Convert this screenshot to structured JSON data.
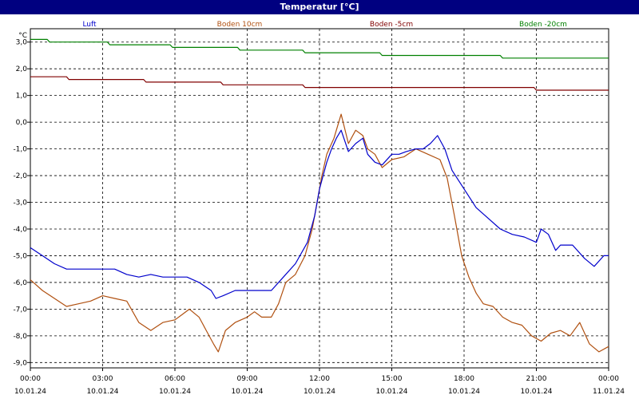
{
  "window": {
    "title": "Temperatur [°C]"
  },
  "chart_data": {
    "type": "line",
    "title": "Temperatur [°C]",
    "ylabel": "°C",
    "xlabel": "",
    "ylim": [
      -9.2,
      3.5
    ],
    "xlim": [
      0,
      24
    ],
    "grid": true,
    "legend_position": "top",
    "y_ticks": [
      "3,0",
      "2,0",
      "1,0",
      "0,0",
      "-1,0",
      "-2,0",
      "-3,0",
      "-4,0",
      "-5,0",
      "-6,0",
      "-7,0",
      "-8,0",
      "-9,0"
    ],
    "y_tick_values": [
      3,
      2,
      1,
      0,
      -1,
      -2,
      -3,
      -4,
      -5,
      -6,
      -7,
      -8,
      -9
    ],
    "x_ticks": [
      {
        "time": "00:00",
        "date": "10.01.24"
      },
      {
        "time": "03:00",
        "date": "10.01.24"
      },
      {
        "time": "06:00",
        "date": "10.01.24"
      },
      {
        "time": "09:00",
        "date": "10.01.24"
      },
      {
        "time": "12:00",
        "date": "10.01.24"
      },
      {
        "time": "15:00",
        "date": "10.01.24"
      },
      {
        "time": "18:00",
        "date": "10.01.24"
      },
      {
        "time": "21:00",
        "date": "10.01.24"
      },
      {
        "time": "00:00",
        "date": "11.01.24"
      }
    ],
    "x_tick_hours": [
      0,
      3,
      6,
      9,
      12,
      15,
      18,
      21,
      24
    ],
    "series": [
      {
        "name": "Luft",
        "color": "#0000cc",
        "points": [
          [
            0,
            -4.7
          ],
          [
            0.5,
            -5.0
          ],
          [
            1,
            -5.3
          ],
          [
            1.5,
            -5.5
          ],
          [
            2,
            -5.5
          ],
          [
            2.5,
            -5.5
          ],
          [
            3,
            -5.5
          ],
          [
            3.5,
            -5.5
          ],
          [
            4,
            -5.7
          ],
          [
            4.5,
            -5.8
          ],
          [
            5,
            -5.7
          ],
          [
            5.5,
            -5.8
          ],
          [
            6,
            -5.8
          ],
          [
            6.5,
            -5.8
          ],
          [
            7,
            -6.0
          ],
          [
            7.5,
            -6.3
          ],
          [
            7.7,
            -6.6
          ],
          [
            8,
            -6.5
          ],
          [
            8.5,
            -6.3
          ],
          [
            9,
            -6.3
          ],
          [
            9.5,
            -6.3
          ],
          [
            10,
            -6.3
          ],
          [
            10.5,
            -5.8
          ],
          [
            11,
            -5.3
          ],
          [
            11.5,
            -4.5
          ],
          [
            11.8,
            -3.5
          ],
          [
            12,
            -2.5
          ],
          [
            12.3,
            -1.5
          ],
          [
            12.5,
            -1.0
          ],
          [
            12.7,
            -0.6
          ],
          [
            12.9,
            -0.3
          ],
          [
            13.2,
            -1.1
          ],
          [
            13.5,
            -0.8
          ],
          [
            13.8,
            -0.6
          ],
          [
            14,
            -1.2
          ],
          [
            14.3,
            -1.5
          ],
          [
            14.6,
            -1.6
          ],
          [
            15,
            -1.2
          ],
          [
            15.3,
            -1.2
          ],
          [
            15.6,
            -1.1
          ],
          [
            16,
            -1.0
          ],
          [
            16.3,
            -1.0
          ],
          [
            16.6,
            -0.8
          ],
          [
            16.9,
            -0.5
          ],
          [
            17.2,
            -1.0
          ],
          [
            17.5,
            -1.8
          ],
          [
            18,
            -2.5
          ],
          [
            18.5,
            -3.2
          ],
          [
            19,
            -3.6
          ],
          [
            19.5,
            -4.0
          ],
          [
            20,
            -4.2
          ],
          [
            20.5,
            -4.3
          ],
          [
            21,
            -4.5
          ],
          [
            21.2,
            -4.0
          ],
          [
            21.5,
            -4.2
          ],
          [
            21.8,
            -4.8
          ],
          [
            22,
            -4.6
          ],
          [
            22.5,
            -4.6
          ],
          [
            23,
            -5.1
          ],
          [
            23.4,
            -5.4
          ],
          [
            23.8,
            -5.0
          ],
          [
            24,
            -5.0
          ]
        ]
      },
      {
        "name": "Boden 10cm",
        "color": "#b05010",
        "points": [
          [
            0,
            -5.9
          ],
          [
            0.5,
            -6.3
          ],
          [
            1,
            -6.6
          ],
          [
            1.5,
            -6.9
          ],
          [
            2,
            -6.8
          ],
          [
            2.5,
            -6.7
          ],
          [
            3,
            -6.5
          ],
          [
            3.5,
            -6.6
          ],
          [
            4,
            -6.7
          ],
          [
            4.5,
            -7.5
          ],
          [
            5,
            -7.8
          ],
          [
            5.5,
            -7.5
          ],
          [
            6,
            -7.4
          ],
          [
            6.3,
            -7.2
          ],
          [
            6.6,
            -7.0
          ],
          [
            7,
            -7.3
          ],
          [
            7.3,
            -7.8
          ],
          [
            7.6,
            -8.3
          ],
          [
            7.8,
            -8.6
          ],
          [
            8.1,
            -7.8
          ],
          [
            8.5,
            -7.5
          ],
          [
            9,
            -7.3
          ],
          [
            9.3,
            -7.1
          ],
          [
            9.6,
            -7.3
          ],
          [
            10,
            -7.3
          ],
          [
            10.3,
            -6.8
          ],
          [
            10.6,
            -6.0
          ],
          [
            11,
            -5.7
          ],
          [
            11.4,
            -5.0
          ],
          [
            11.7,
            -4.0
          ],
          [
            11.9,
            -3.0
          ],
          [
            12.1,
            -2.0
          ],
          [
            12.3,
            -1.2
          ],
          [
            12.6,
            -0.6
          ],
          [
            12.9,
            0.3
          ],
          [
            13.2,
            -0.8
          ],
          [
            13.5,
            -0.3
          ],
          [
            13.8,
            -0.5
          ],
          [
            14,
            -1.0
          ],
          [
            14.3,
            -1.2
          ],
          [
            14.6,
            -1.7
          ],
          [
            15,
            -1.4
          ],
          [
            15.5,
            -1.3
          ],
          [
            16,
            -1.0
          ],
          [
            16.5,
            -1.2
          ],
          [
            17,
            -1.4
          ],
          [
            17.3,
            -2.1
          ],
          [
            17.6,
            -3.5
          ],
          [
            17.9,
            -5.0
          ],
          [
            18.2,
            -5.8
          ],
          [
            18.5,
            -6.4
          ],
          [
            18.8,
            -6.8
          ],
          [
            19.2,
            -6.9
          ],
          [
            19.6,
            -7.3
          ],
          [
            20,
            -7.5
          ],
          [
            20.4,
            -7.6
          ],
          [
            20.8,
            -8.0
          ],
          [
            21.2,
            -8.2
          ],
          [
            21.6,
            -7.9
          ],
          [
            22,
            -7.8
          ],
          [
            22.4,
            -8.0
          ],
          [
            22.8,
            -7.5
          ],
          [
            23.2,
            -8.3
          ],
          [
            23.6,
            -8.6
          ],
          [
            24,
            -8.4
          ]
        ]
      },
      {
        "name": "Boden -5cm",
        "color": "#800000",
        "points": [
          [
            0,
            1.7
          ],
          [
            1.5,
            1.7
          ],
          [
            1.6,
            1.6
          ],
          [
            4.7,
            1.6
          ],
          [
            4.8,
            1.5
          ],
          [
            7.9,
            1.5
          ],
          [
            8,
            1.4
          ],
          [
            11.3,
            1.4
          ],
          [
            11.4,
            1.3
          ],
          [
            20.9,
            1.3
          ],
          [
            21,
            1.2
          ],
          [
            24,
            1.2
          ]
        ]
      },
      {
        "name": "Boden -20cm",
        "color": "#008000",
        "points": [
          [
            0,
            3.1
          ],
          [
            0.7,
            3.1
          ],
          [
            0.8,
            3.0
          ],
          [
            3.2,
            3.0
          ],
          [
            3.3,
            2.9
          ],
          [
            5.8,
            2.9
          ],
          [
            5.9,
            2.8
          ],
          [
            8.6,
            2.8
          ],
          [
            8.7,
            2.7
          ],
          [
            11.3,
            2.7
          ],
          [
            11.4,
            2.6
          ],
          [
            14.5,
            2.6
          ],
          [
            14.6,
            2.5
          ],
          [
            19.5,
            2.5
          ],
          [
            19.6,
            2.4
          ],
          [
            24,
            2.4
          ]
        ]
      }
    ]
  }
}
